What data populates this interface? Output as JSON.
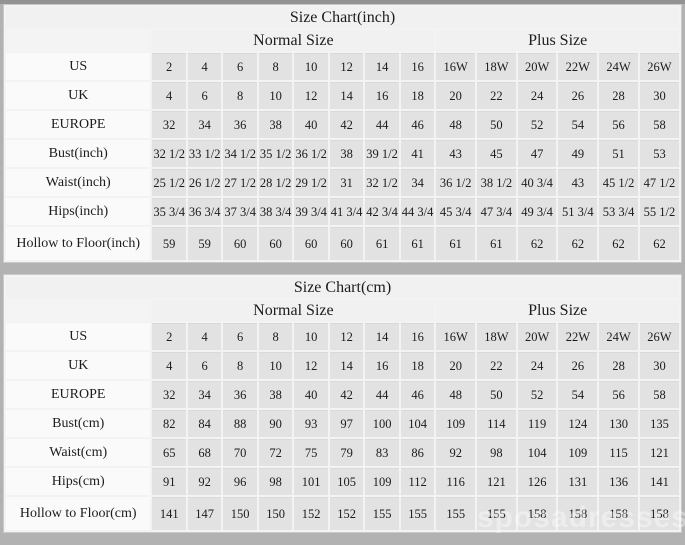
{
  "page": {
    "watermark": "sposadresses"
  },
  "colors": {
    "outer_background": "#b2b2b2",
    "table_gridline": "#f3f3f3",
    "header_background": "#f1f1f1",
    "label_cell_background": "#fafafa",
    "data_cell_background": "#e2e2e2",
    "text": "#1c1c1c",
    "watermark_text": "rgba(255,255,255,0.38)"
  },
  "tables": [
    {
      "id": "inch",
      "title": "Size Chart(inch)",
      "group_headers": [
        "Normal Size",
        "Plus Size"
      ],
      "normal_column_count": 8,
      "plus_column_count": 6,
      "rows": [
        {
          "label": "US",
          "values": [
            "2",
            "4",
            "6",
            "8",
            "10",
            "12",
            "14",
            "16",
            "16W",
            "18W",
            "20W",
            "22W",
            "24W",
            "26W"
          ]
        },
        {
          "label": "UK",
          "values": [
            "4",
            "6",
            "8",
            "10",
            "12",
            "14",
            "16",
            "18",
            "20",
            "22",
            "24",
            "26",
            "28",
            "30"
          ]
        },
        {
          "label": "EUROPE",
          "values": [
            "32",
            "34",
            "36",
            "38",
            "40",
            "42",
            "44",
            "46",
            "48",
            "50",
            "52",
            "54",
            "56",
            "58"
          ]
        },
        {
          "label": "Bust(inch)",
          "values": [
            "32 1/2",
            "33 1/2",
            "34 1/2",
            "35 1/2",
            "36 1/2",
            "38",
            "39 1/2",
            "41",
            "43",
            "45",
            "47",
            "49",
            "51",
            "53"
          ]
        },
        {
          "label": "Waist(inch)",
          "values": [
            "25 1/2",
            "26 1/2",
            "27 1/2",
            "28 1/2",
            "29 1/2",
            "31",
            "32 1/2",
            "34",
            "36 1/2",
            "38 1/2",
            "40 3/4",
            "43",
            "45 1/2",
            "47 1/2"
          ]
        },
        {
          "label": "Hips(inch)",
          "values": [
            "35 3/4",
            "36 3/4",
            "37 3/4",
            "38 3/4",
            "39 3/4",
            "41 3/4",
            "42 3/4",
            "44 3/4",
            "45 3/4",
            "47 3/4",
            "49 3/4",
            "51 3/4",
            "53 3/4",
            "55 1/2"
          ]
        },
        {
          "label": "Hollow to Floor(inch)",
          "values": [
            "59",
            "59",
            "60",
            "60",
            "60",
            "60",
            "61",
            "61",
            "61",
            "61",
            "62",
            "62",
            "62",
            "62"
          ]
        }
      ]
    },
    {
      "id": "cm",
      "title": "Size Chart(cm)",
      "group_headers": [
        "Normal Size",
        "Plus Size"
      ],
      "normal_column_count": 8,
      "plus_column_count": 6,
      "rows": [
        {
          "label": "US",
          "values": [
            "2",
            "4",
            "6",
            "8",
            "10",
            "12",
            "14",
            "16",
            "16W",
            "18W",
            "20W",
            "22W",
            "24W",
            "26W"
          ]
        },
        {
          "label": "UK",
          "values": [
            "4",
            "6",
            "8",
            "10",
            "12",
            "14",
            "16",
            "18",
            "20",
            "22",
            "24",
            "26",
            "28",
            "30"
          ]
        },
        {
          "label": "EUROPE",
          "values": [
            "32",
            "34",
            "36",
            "38",
            "40",
            "42",
            "44",
            "46",
            "48",
            "50",
            "52",
            "54",
            "56",
            "58"
          ]
        },
        {
          "label": "Bust(cm)",
          "values": [
            "82",
            "84",
            "88",
            "90",
            "93",
            "97",
            "100",
            "104",
            "109",
            "114",
            "119",
            "124",
            "130",
            "135"
          ]
        },
        {
          "label": "Waist(cm)",
          "values": [
            "65",
            "68",
            "70",
            "72",
            "75",
            "79",
            "83",
            "86",
            "92",
            "98",
            "104",
            "109",
            "115",
            "121"
          ]
        },
        {
          "label": "Hips(cm)",
          "values": [
            "91",
            "92",
            "96",
            "98",
            "101",
            "105",
            "109",
            "112",
            "116",
            "121",
            "126",
            "131",
            "136",
            "141"
          ]
        },
        {
          "label": "Hollow to Floor(cm)",
          "values": [
            "141",
            "147",
            "150",
            "150",
            "152",
            "152",
            "155",
            "155",
            "155",
            "155",
            "158",
            "158",
            "158",
            "158"
          ]
        }
      ]
    }
  ]
}
